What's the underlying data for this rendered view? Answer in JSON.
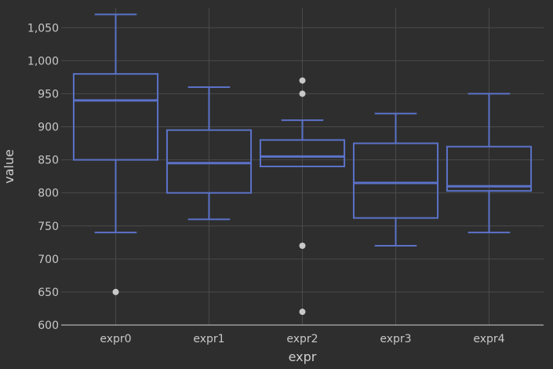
{
  "chart_data": {
    "type": "box",
    "xlabel": "expr",
    "ylabel": "value",
    "ylim": [
      600,
      1080
    ],
    "yticks": [
      600,
      650,
      700,
      750,
      800,
      850,
      900,
      950,
      1000,
      1050
    ],
    "ytick_labels": [
      "600",
      "650",
      "700",
      "750",
      "800",
      "850",
      "900",
      "950",
      "1,000",
      "1,050"
    ],
    "categories": [
      "expr0",
      "expr1",
      "expr2",
      "expr3",
      "expr4"
    ],
    "boxes": [
      {
        "category": "expr0",
        "whisker_low": 740,
        "q1": 850,
        "median": 940,
        "q3": 980,
        "whisker_high": 1070,
        "outliers": [
          650
        ]
      },
      {
        "category": "expr1",
        "whisker_low": 760,
        "q1": 800,
        "median": 845,
        "q3": 895,
        "whisker_high": 960,
        "outliers": []
      },
      {
        "category": "expr2",
        "whisker_low": 840,
        "q1": 840,
        "median": 855,
        "q3": 880,
        "whisker_high": 910,
        "outliers": [
          970,
          950,
          720,
          620
        ]
      },
      {
        "category": "expr3",
        "whisker_low": 720,
        "q1": 762,
        "median": 815,
        "q3": 875,
        "whisker_high": 920,
        "outliers": []
      },
      {
        "category": "expr4",
        "whisker_low": 740,
        "q1": 803,
        "median": 810,
        "q3": 870,
        "whisker_high": 950,
        "outliers": []
      }
    ],
    "box_color": "#5b72c8",
    "outlier_color": "#c8c8c8",
    "background": "#2e2e2e",
    "grid": true
  }
}
